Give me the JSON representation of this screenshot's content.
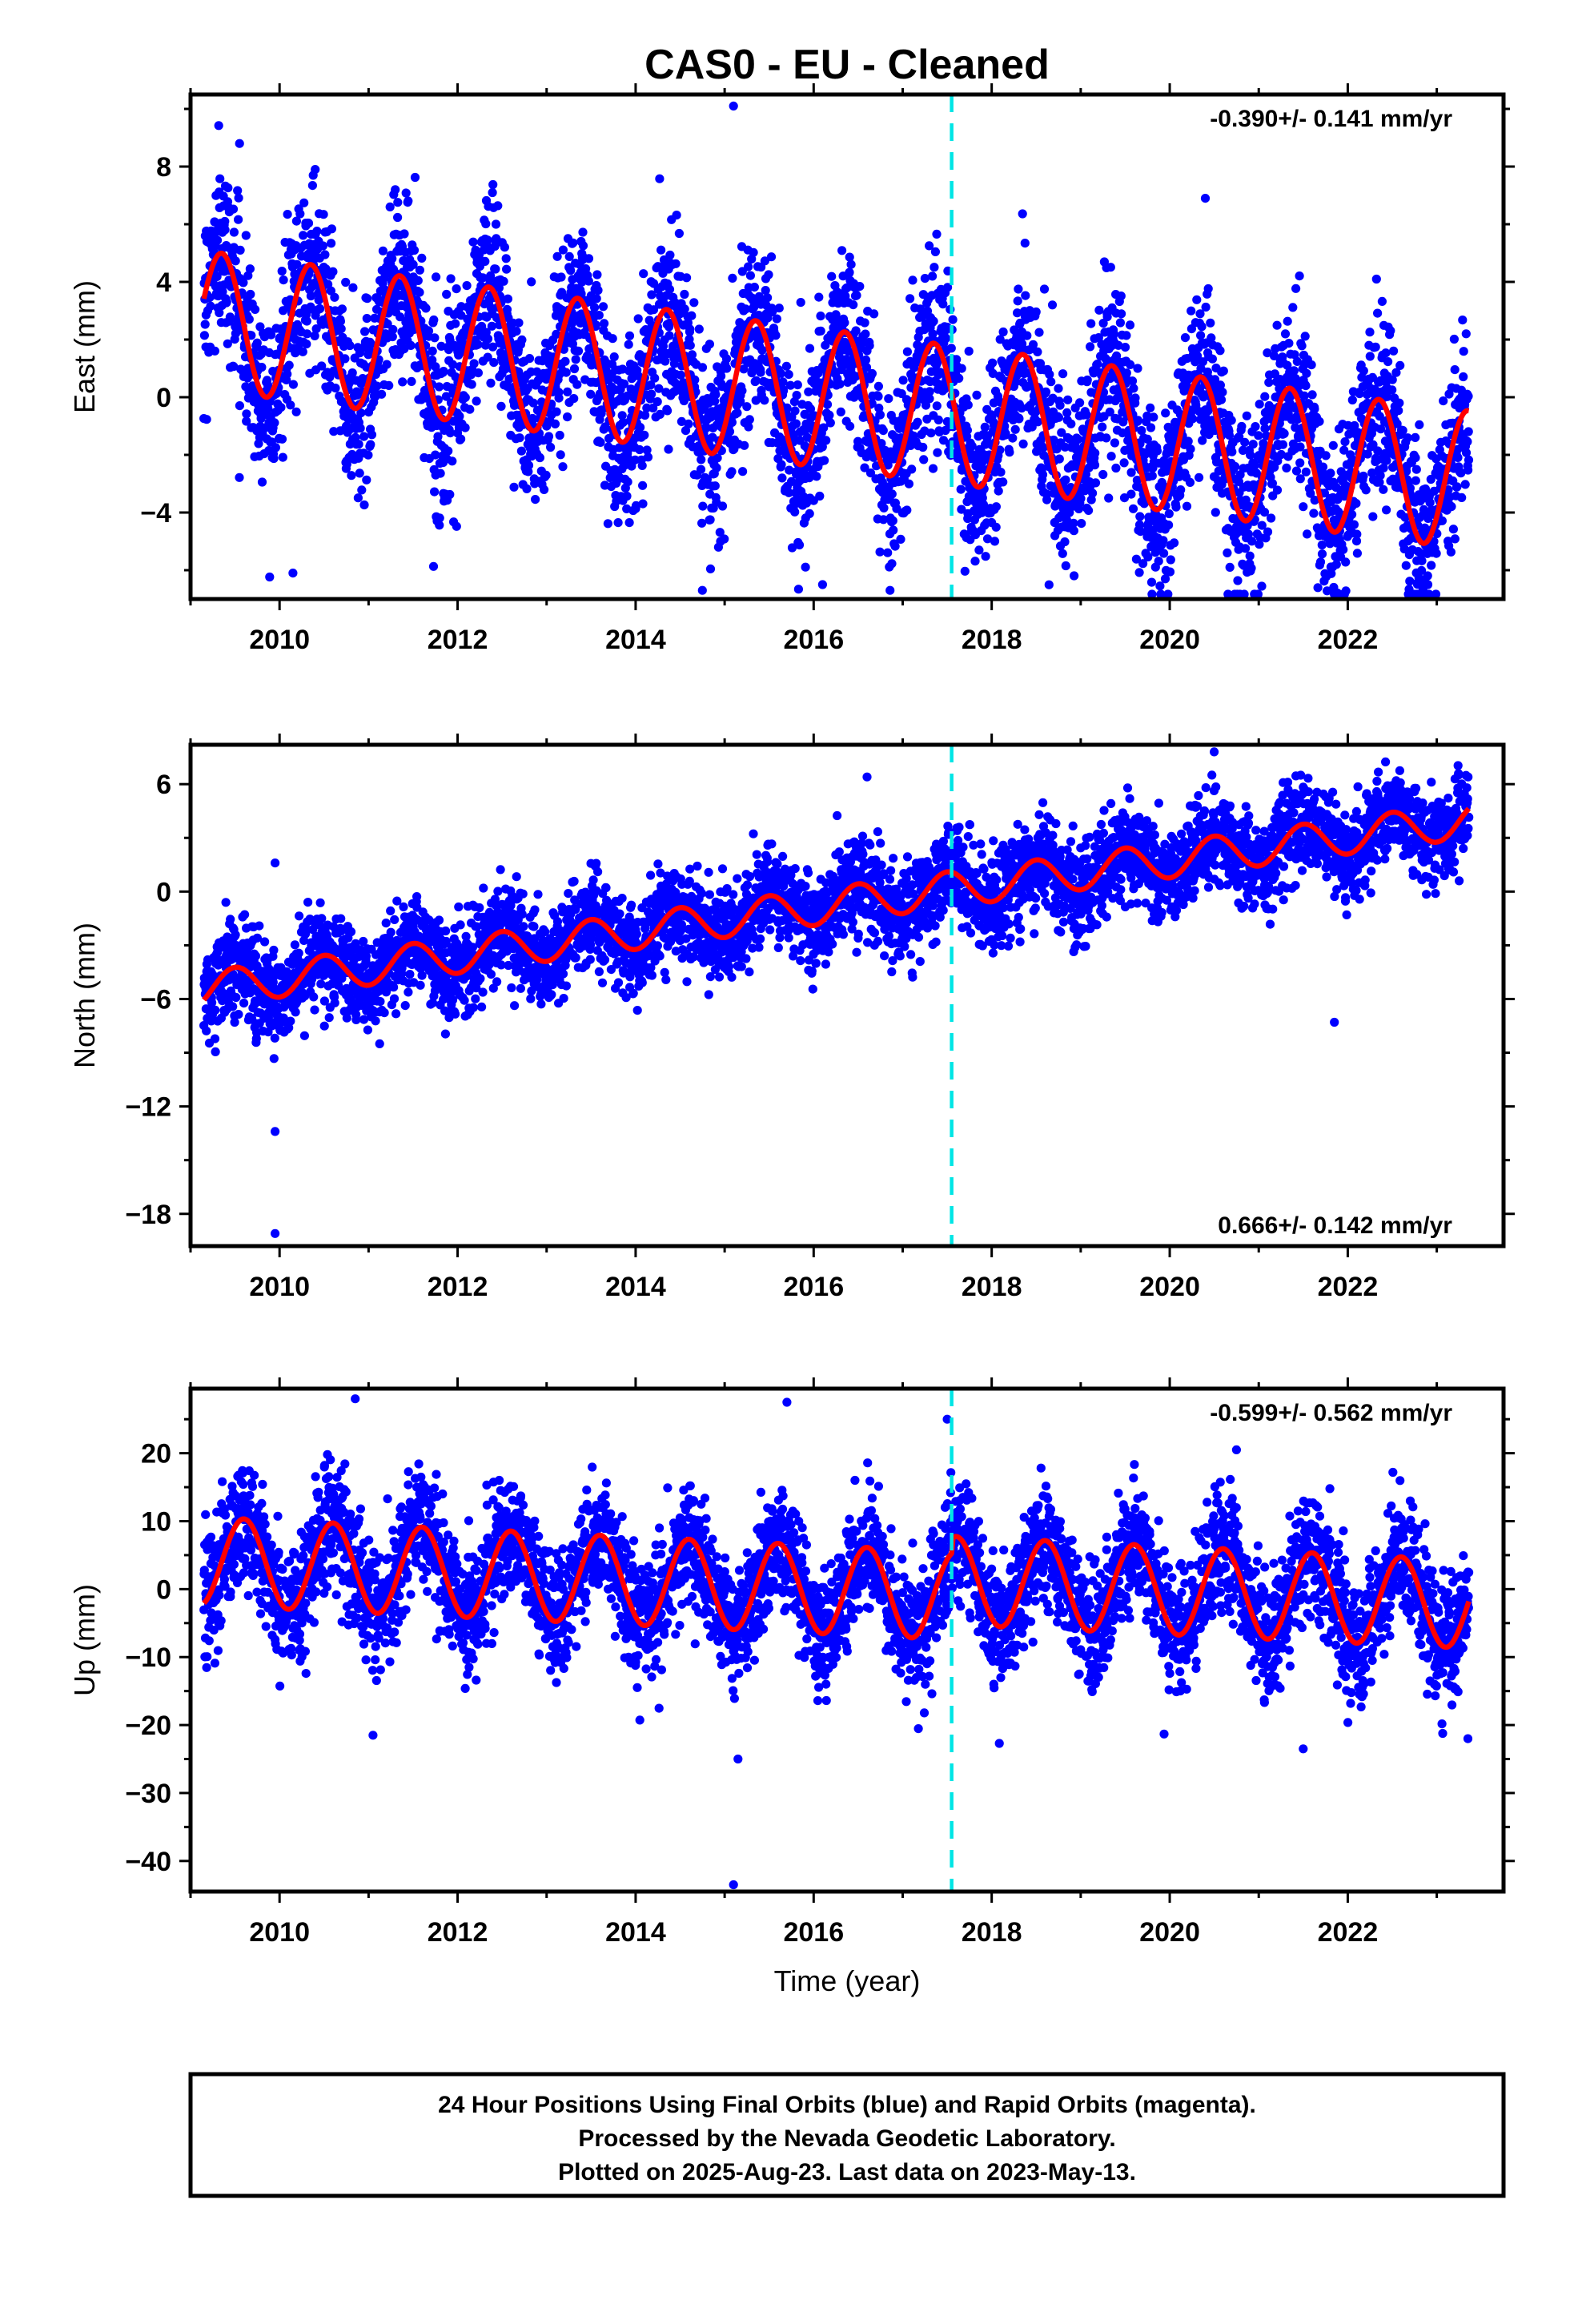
{
  "chart_data": [
    {
      "type": "scatter",
      "title": "CAS0  - EU - Cleaned",
      "ylabel": "East (mm)",
      "xlabel": "",
      "xlim": [
        2009.0,
        2023.75
      ],
      "ylim": [
        -7,
        10.5
      ],
      "x_ticks": [
        2010,
        2012,
        2014,
        2016,
        2018,
        2020,
        2022
      ],
      "y_ticks": [
        -4,
        0,
        4,
        8
      ],
      "rate": "-0.390+/- 0.141 mm/yr",
      "rate_position": "top-right",
      "grid": false,
      "offset_epoch": 2017.55,
      "series": [
        {
          "kind": "daily-positions",
          "color": "#0000ff",
          "x_range": [
            2009.15,
            2023.36
          ],
          "model": {
            "a": 0.0,
            "rate": -0.39,
            "t0": 2016,
            "amp": 2.4,
            "phase_peak": 0.35,
            "sigma": 1.5
          },
          "outliers": [
            [
              2009.55,
              8.8
            ],
            [
              2010.4,
              7.9
            ],
            [
              2011.3,
              7.2
            ],
            [
              2015.1,
              10.1
            ],
            [
              2020.4,
              6.9
            ],
            [
              2010.15,
              -6.1
            ],
            [
              2014.75,
              -6.7
            ],
            [
              2016.1,
              -6.5
            ],
            [
              2022.9,
              -6.5
            ],
            [
              2019.95,
              -6.3
            ]
          ]
        },
        {
          "kind": "model-fit",
          "color": "#ff0000"
        }
      ]
    },
    {
      "type": "scatter",
      "title": "",
      "ylabel": "North (mm)",
      "xlabel": "",
      "xlim": [
        2009.0,
        2023.75
      ],
      "ylim": [
        -19.8,
        8.2
      ],
      "x_ticks": [
        2010,
        2012,
        2014,
        2016,
        2018,
        2020,
        2022
      ],
      "y_ticks": [
        -18,
        -12,
        -6,
        0,
        6
      ],
      "rate": "0.666+/- 0.142 mm/yr",
      "rate_position": "bottom-right",
      "grid": false,
      "offset_epoch": 2017.55,
      "series": [
        {
          "kind": "daily-positions",
          "color": "#0000ff",
          "x_range": [
            2009.15,
            2023.36
          ],
          "model": {
            "a": -0.9,
            "rate": 0.666,
            "t0": 2016,
            "amp": 1.0,
            "phase_peak": 0.5,
            "sigma": 1.3
          },
          "outliers": [
            [
              2009.95,
              1.6
            ],
            [
              2009.95,
              -13.4
            ],
            [
              2009.95,
              -19.1
            ],
            [
              2021.85,
              -7.3
            ],
            [
              2016.6,
              6.4
            ],
            [
              2020.5,
              7.8
            ]
          ]
        },
        {
          "kind": "model-fit",
          "color": "#ff0000"
        }
      ]
    },
    {
      "type": "scatter",
      "title": "",
      "ylabel": "Up (mm)",
      "xlabel": "Time (year)",
      "xlim": [
        2009.0,
        2023.75
      ],
      "ylim": [
        -44.5,
        29.5
      ],
      "x_ticks": [
        2010,
        2012,
        2014,
        2016,
        2018,
        2020,
        2022
      ],
      "y_ticks": [
        -40,
        -30,
        -20,
        -10,
        0,
        10,
        20
      ],
      "rate": "-0.599+/- 0.562 mm/yr",
      "rate_position": "top-right",
      "grid": false,
      "offset_epoch": 2017.55,
      "series": [
        {
          "kind": "daily-positions",
          "color": "#0000ff",
          "x_range": [
            2009.15,
            2023.36
          ],
          "model": {
            "a": 0.0,
            "rate": -0.599,
            "t0": 2016,
            "amp": 6.5,
            "phase_peak": 0.6,
            "sigma": 4.5
          },
          "outliers": [
            [
              2010.85,
              28.0
            ],
            [
              2015.7,
              27.5
            ],
            [
              2017.5,
              25.0
            ],
            [
              2015.1,
              -43.5
            ],
            [
              2015.15,
              -25.0
            ],
            [
              2011.05,
              -21.5
            ],
            [
              2021.5,
              -23.5
            ],
            [
              2023.35,
              -22.0
            ],
            [
              2020.75,
              20.5
            ]
          ]
        },
        {
          "kind": "model-fit",
          "color": "#ff0000"
        }
      ]
    }
  ],
  "caption": {
    "lines": [
      "24 Hour Positions Using Final Orbits (blue) and Rapid Orbits (magenta).",
      "Processed by the Nevada Geodetic Laboratory.",
      "Plotted on 2025-Aug-23. Last data on 2023-May-13."
    ]
  },
  "colors": {
    "points": "#0000ff",
    "fit": "#ff0000",
    "offset_line": "#00e5e5",
    "frame": "#000000"
  }
}
